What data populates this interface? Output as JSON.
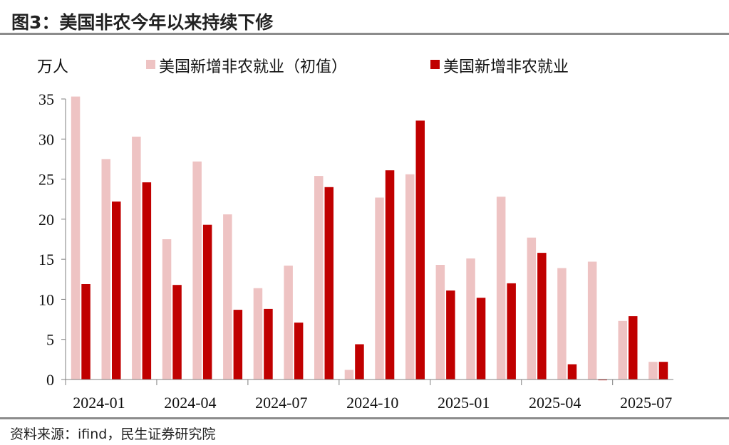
{
  "header": {
    "title": "图3：美国非农今年以来持续下修"
  },
  "footer": {
    "source": "资料来源：ifind，民生证券研究院"
  },
  "colors": {
    "initial": "#eec3c3",
    "revised": "#c00000"
  },
  "chart_data": {
    "type": "bar",
    "ylabel": "万人",
    "ylim": [
      0,
      35
    ],
    "yticks": [
      0,
      5,
      10,
      15,
      20,
      25,
      30,
      35
    ],
    "grid": false,
    "legend_position": "top",
    "categories": [
      "2024-01",
      "2024-02",
      "2024-03",
      "2024-04",
      "2024-05",
      "2024-06",
      "2024-07",
      "2024-08",
      "2024-09",
      "2024-10",
      "2024-11",
      "2024-12",
      "2025-01",
      "2025-02",
      "2025-03",
      "2025-04",
      "2025-05",
      "2025-06",
      "2025-07",
      "2025-08"
    ],
    "xtick_labels": [
      "2024-01",
      "2024-04",
      "2024-07",
      "2024-10",
      "2025-01",
      "2025-04",
      "2025-07"
    ],
    "series": [
      {
        "name": "美国新增非农就业（初值）",
        "color": "#eec3c3",
        "values": [
          35.3,
          27.5,
          30.3,
          17.5,
          27.2,
          20.6,
          11.4,
          14.2,
          25.4,
          1.2,
          22.7,
          25.6,
          14.3,
          15.1,
          22.8,
          17.7,
          13.9,
          14.7,
          7.3,
          2.2
        ]
      },
      {
        "name": "美国新增非农就业",
        "color": "#c00000",
        "values": [
          11.9,
          22.2,
          24.6,
          11.8,
          19.3,
          8.7,
          8.8,
          7.1,
          24.0,
          4.4,
          26.1,
          32.3,
          11.1,
          10.2,
          12.0,
          15.8,
          1.9,
          -0.1,
          7.9,
          2.2
        ]
      }
    ]
  }
}
